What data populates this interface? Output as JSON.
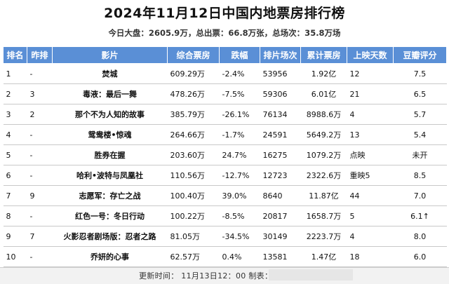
{
  "title": "2024年11月12日中国内地票房排行榜",
  "summary": "今日大盘：2605.9万，总出票：66.8万张，总场次：35.8万场",
  "table": {
    "headers": [
      "排名",
      "昨排",
      "影片",
      "综合票房",
      "跌幅",
      "排片场次",
      "累计票房",
      "上映天数",
      "豆瓣评分"
    ],
    "rows": [
      {
        "rank": "1",
        "prev": "-",
        "film": "焚城",
        "total": "609.29万",
        "change": "-2.4%",
        "trend": "neg",
        "shows": "53956",
        "cumulative": "1.92亿",
        "days": "12",
        "score": "7.5"
      },
      {
        "rank": "2",
        "prev": "3",
        "film": "毒液：最后一舞",
        "total": "478.26万",
        "change": "-7.5%",
        "trend": "neg",
        "shows": "59306",
        "cumulative": "6.01亿",
        "days": "21",
        "score": "6.5"
      },
      {
        "rank": "3",
        "prev": "2",
        "film": "那个不为人知的故事",
        "total": "385.79万",
        "change": "-26.1%",
        "trend": "neg",
        "shows": "76134",
        "cumulative": "8988.6万",
        "days": "4",
        "score": "5.7"
      },
      {
        "rank": "4",
        "prev": "-",
        "film": "鸳鸯楼•惊魂",
        "total": "264.66万",
        "change": "-1.7%",
        "trend": "neg",
        "shows": "24591",
        "cumulative": "5649.2万",
        "days": "13",
        "score": "5.4"
      },
      {
        "rank": "5",
        "prev": "-",
        "film": "胜券在握",
        "total": "203.60万",
        "change": "24.7%",
        "trend": "pos",
        "shows": "16275",
        "cumulative": "1079.2万",
        "days": "点映",
        "score": "未开"
      },
      {
        "rank": "6",
        "prev": "-",
        "film": "哈利•波特与凤凰社",
        "total": "110.56万",
        "change": "-12.7%",
        "trend": "neg",
        "shows": "12723",
        "cumulative": "2322.6万",
        "days": "重映5",
        "score": "8.5"
      },
      {
        "rank": "7",
        "prev": "9",
        "film": "志愿军：存亡之战",
        "total": "100.40万",
        "change": "39.0%",
        "trend": "pos",
        "shows": "8640",
        "cumulative": "11.87亿",
        "days": "44",
        "score": "7.0"
      },
      {
        "rank": "8",
        "prev": "-",
        "film": "红色一号：冬日行动",
        "total": "100.22万",
        "change": "-8.5%",
        "trend": "neg",
        "shows": "20817",
        "cumulative": "1658.7万",
        "days": "5",
        "score": "6.1↑"
      },
      {
        "rank": "9",
        "prev": "7",
        "film": "火影忍者剧场版：忍者之路",
        "total": "81.05万",
        "change": "-34.5%",
        "trend": "neg",
        "shows": "30149",
        "cumulative": "2223.7万",
        "days": "4",
        "score": "8.0"
      },
      {
        "rank": "10",
        "prev": "-",
        "film": "乔妍的心事",
        "total": "62.57万",
        "change": "0.4%",
        "trend": "pos",
        "shows": "13581",
        "cumulative": "1.47亿",
        "days": "18",
        "score": "6.0"
      }
    ]
  },
  "footer": {
    "text": "更新时间： 11月13日12：00 制表："
  },
  "colors": {
    "header_bg": "#5a8fd6",
    "negative": "#e02020",
    "positive": "#1fa53a",
    "score": "#e8892b"
  }
}
